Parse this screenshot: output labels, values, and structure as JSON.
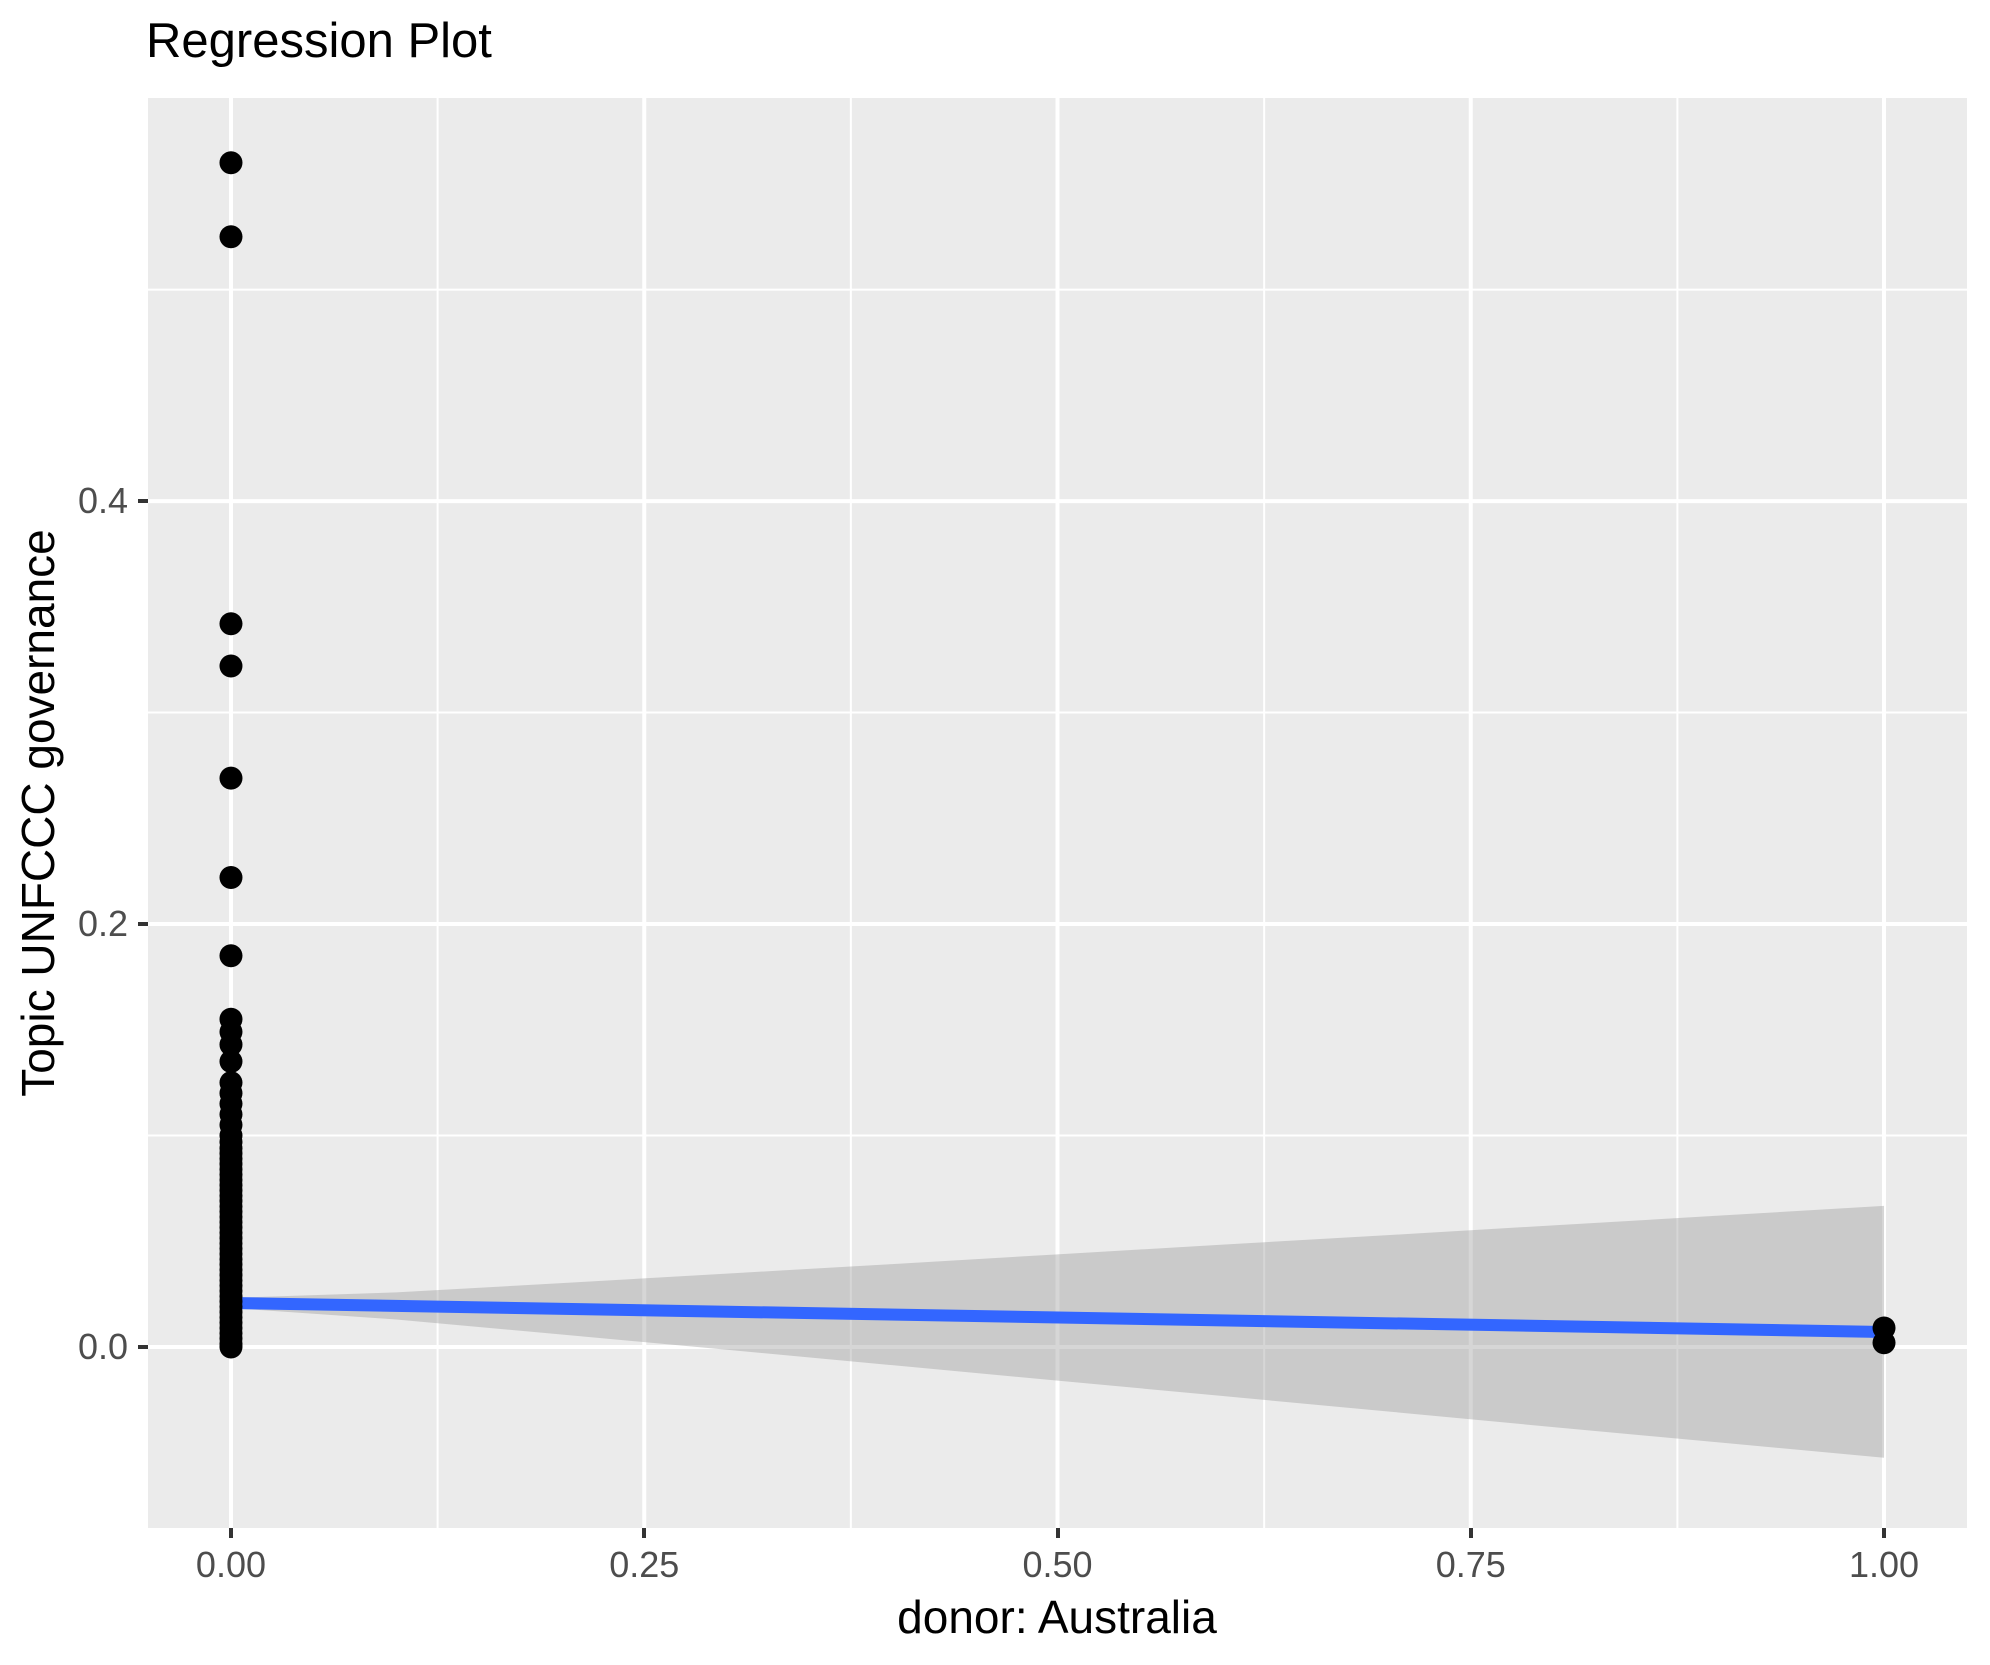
{
  "chart_data": {
    "type": "scatter",
    "title": "Regression Plot",
    "xlabel": "donor: Australia",
    "ylabel": "Topic UNFCCC governance",
    "xlim": [
      -0.0502,
      1.0502
    ],
    "ylim": [
      -0.0856,
      0.5906
    ],
    "grid": "major-and-minor-white-on-gray",
    "legend": "none",
    "x_ticks": {
      "values": [
        0,
        0.25,
        0.5,
        0.75,
        1.0
      ],
      "labels": [
        "0.00",
        "0.25",
        "0.50",
        "0.75",
        "1.00"
      ]
    },
    "y_ticks": {
      "values": [
        0,
        0.2,
        0.4
      ],
      "labels": [
        "0.0",
        "0.2",
        "0.4"
      ]
    },
    "x_minor_gridlines": [
      0.125,
      0.375,
      0.625,
      0.875
    ],
    "y_minor_gridlines": [
      0.1,
      0.3,
      0.5
    ],
    "series": [
      {
        "name": "observations at donor=0",
        "type": "points",
        "x_value": 0,
        "y_values": [
          0.56,
          0.525,
          0.342,
          0.322,
          0.269,
          0.222,
          0.185,
          0.155,
          0.149,
          0.143,
          0.135,
          0.125,
          0.12,
          0.115,
          0.11,
          0.105,
          0.1,
          0.097,
          0.094,
          0.0915,
          0.089,
          0.0865,
          0.084,
          0.0815,
          0.079,
          0.0765,
          0.074,
          0.0715,
          0.069,
          0.0665,
          0.064,
          0.0615,
          0.059,
          0.0565,
          0.054,
          0.0515,
          0.049,
          0.0465,
          0.044,
          0.0415,
          0.039,
          0.0365,
          0.034,
          0.0315,
          0.029,
          0.0265,
          0.024,
          0.0215,
          0.019,
          0.0165,
          0.014,
          0.0115,
          0.009,
          0.0065,
          0.004,
          0.0015,
          0.0
        ]
      },
      {
        "name": "observations at donor=1",
        "type": "points",
        "x_value": 1,
        "y_values": [
          0.009,
          0.002
        ]
      },
      {
        "name": "linear fit",
        "type": "line",
        "x": [
          0,
          1
        ],
        "y": [
          0.0208,
          0.0071
        ]
      },
      {
        "name": "95% confidence band",
        "type": "band",
        "x": [
          0,
          0.1,
          0.2,
          0.3,
          0.4,
          0.5,
          0.6,
          0.7,
          0.8,
          0.9,
          1.0
        ],
        "upper": [
          0.0232,
          0.0258,
          0.0302,
          0.0347,
          0.0392,
          0.0438,
          0.0484,
          0.0529,
          0.0575,
          0.0621,
          0.0667
        ],
        "lower": [
          0.0184,
          0.013,
          0.0059,
          -0.0013,
          -0.0086,
          -0.0159,
          -0.0232,
          -0.0305,
          -0.0379,
          -0.0451,
          -0.0524
        ]
      }
    ],
    "colors": {
      "point": "#000000",
      "line": "#3366FF",
      "band": "#999999",
      "band_opacity": 0.4,
      "panel_background": "#EBEBEB",
      "gridline": "#FFFFFF",
      "tick_label": "#4D4D4D",
      "tick_mark": "#333333",
      "axis_title": "#000000",
      "plot_background": "#FFFFFF"
    }
  }
}
